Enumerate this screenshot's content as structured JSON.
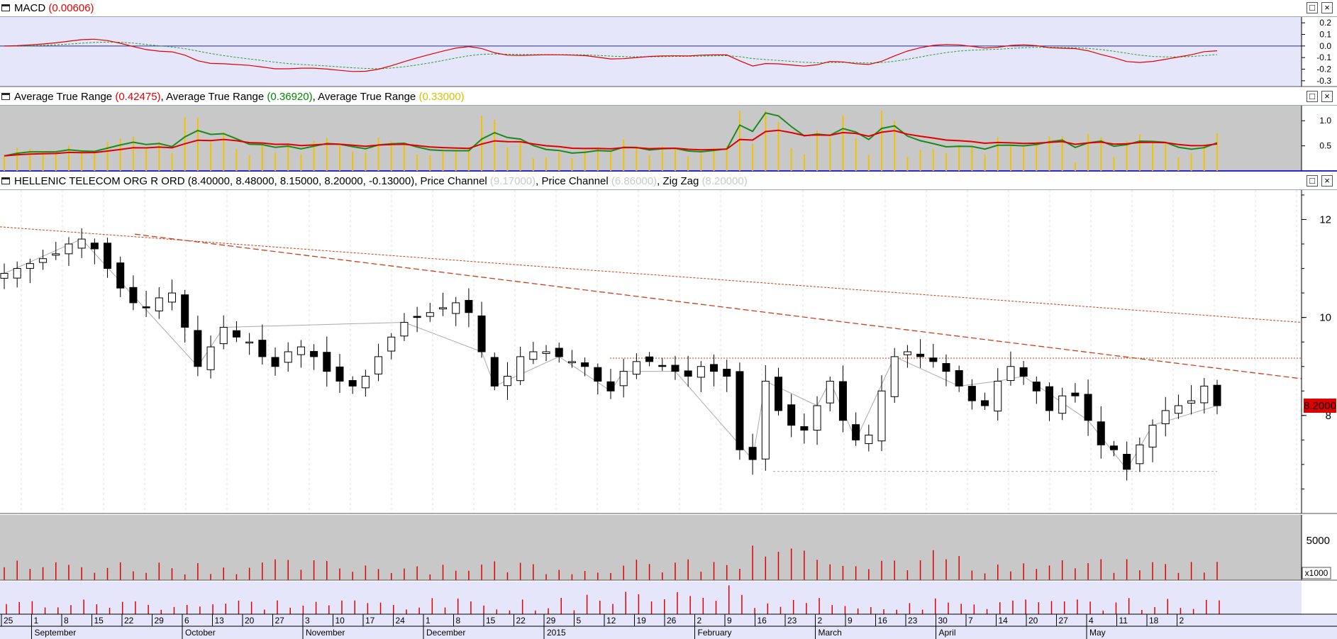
{
  "panels": {
    "macd": {
      "title": "MACD",
      "value": "(0.00606)",
      "axis_labels": [
        "0.2",
        "0.1",
        "0.0",
        "-0.1",
        "-0.2",
        "-0.3"
      ]
    },
    "atr": {
      "title1": "Average True Range",
      "value1": "(0.42475)",
      "sep1": ", ",
      "title2": "Average True Range",
      "value2": "(0.36920)",
      "sep2": ", ",
      "title3": "Average True Range",
      "value3": "(0.33000)",
      "axis_labels": [
        "1.0",
        "0.5"
      ]
    },
    "price": {
      "title": "HELLENIC TELECOM ORG R ORD (8.40000, 8.48000, 8.15000, 8.20000, -0.13000)",
      "sep1": ", ",
      "pc1_name": "Price Channel",
      "pc1_value": "(9.17000)",
      "sep2": ", ",
      "pc2_name": "Price Channel",
      "pc2_value": "(6.86000)",
      "sep3": ", ",
      "zz_name": "Zig Zag",
      "zz_value": "(8.20000)",
      "axis_labels": [
        "12",
        "10",
        "8"
      ],
      "last_price_tag": "8.2000"
    },
    "volume": {
      "axis_label": "5000",
      "multiplier": "x1000"
    }
  },
  "buttons": {
    "maximize": "□",
    "close": "×"
  },
  "time_axis": {
    "day_labels": [
      "25",
      "1",
      "8",
      "15",
      "22",
      "29",
      "6",
      "13",
      "20",
      "27",
      "3",
      "10",
      "17",
      "24",
      "1",
      "8",
      "15",
      "22",
      "29",
      "5",
      "12",
      "19",
      "26",
      "2",
      "9",
      "16",
      "23",
      "2",
      "9",
      "16",
      "23",
      "30",
      "7",
      "14",
      "20",
      "27",
      "4",
      "11",
      "18",
      "2"
    ],
    "month_labels": [
      "September",
      "October",
      "November",
      "December",
      "2015",
      "February",
      "March",
      "April",
      "May"
    ]
  },
  "colors": {
    "panel_bg": "#e6e6fa",
    "grey_bg": "#c8c8c8",
    "macd_line": "#e00000",
    "signal_line": "#2aa02a",
    "trend_line": "#c8401a",
    "candle": "#000000",
    "volume_bar": "#e00000"
  },
  "chart_data": {
    "type": "candlestick",
    "price_ylim": [
      6,
      12.6
    ],
    "macd_ylim": [
      -0.35,
      0.25
    ],
    "atr_ylim": [
      0,
      1.3
    ],
    "closes": [
      10.9,
      11.0,
      11.1,
      11.2,
      11.3,
      11.5,
      11.6,
      11.4,
      11.0,
      10.6,
      10.3,
      10.2,
      10.4,
      10.5,
      9.8,
      9.0,
      9.4,
      9.8,
      9.6,
      9.5,
      9.2,
      9.0,
      9.3,
      9.4,
      9.2,
      8.9,
      8.7,
      8.6,
      8.8,
      9.2,
      9.6,
      9.9,
      10.0,
      10.1,
      10.2,
      10.3,
      10.1,
      9.3,
      8.6,
      8.8,
      9.2,
      9.3,
      9.3,
      9.2,
      9.1,
      9.0,
      8.7,
      8.5,
      8.9,
      9.1,
      9.1,
      9.0,
      8.9,
      8.8,
      9.0,
      8.9,
      8.8,
      7.3,
      7.1,
      8.7,
      8.1,
      7.8,
      7.7,
      8.2,
      8.7,
      7.9,
      7.5,
      7.6,
      8.5,
      9.2,
      9.3,
      9.2,
      9.1,
      8.9,
      8.6,
      8.3,
      8.2,
      8.7,
      9.0,
      8.8,
      8.5,
      8.1,
      8.4,
      8.4,
      7.9,
      7.4,
      7.3,
      6.9,
      7.4,
      7.8,
      8.1,
      8.2,
      8.3,
      8.6,
      8.2
    ],
    "price_channel_upper": 9.17,
    "price_channel_lower": 6.86,
    "zigzag_last": 8.2,
    "macd_last": 0.00606,
    "atr_values": [
      0.42475,
      0.3692,
      0.33
    ]
  }
}
